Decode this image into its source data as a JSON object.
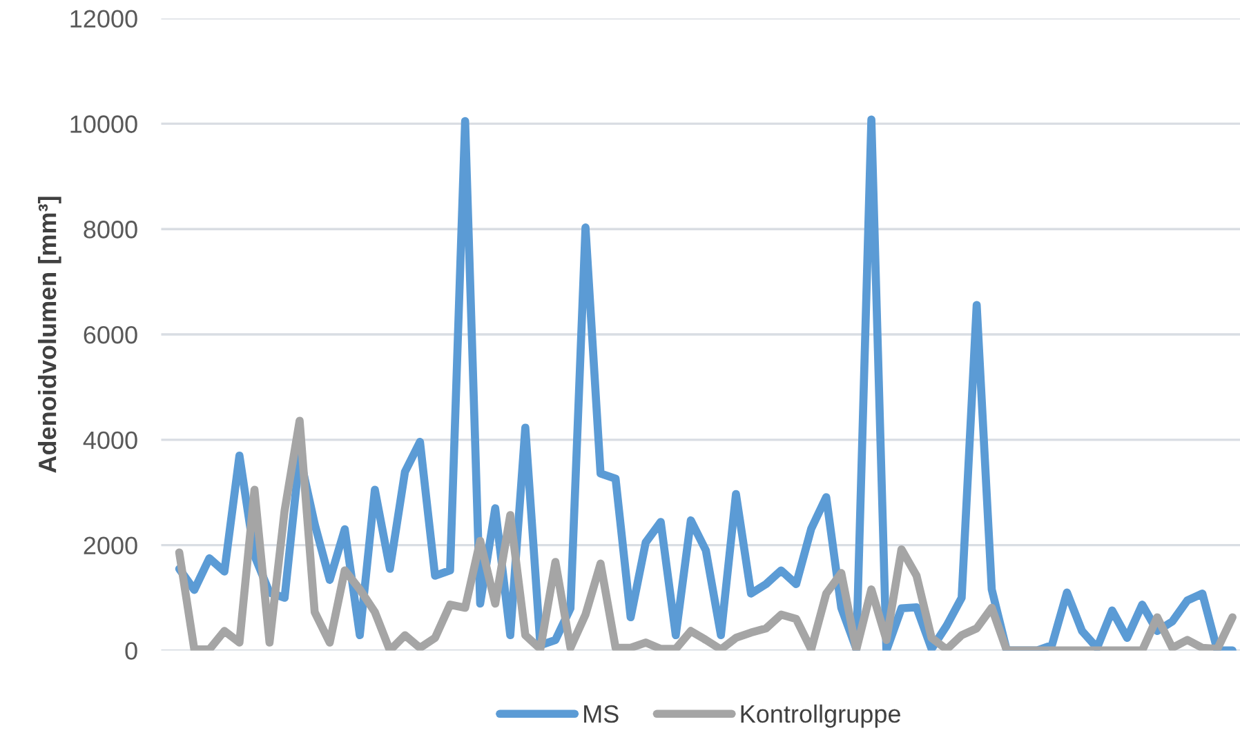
{
  "chart_data": {
    "type": "line",
    "ylabel": "Adenoidvolumen [mm³]",
    "categories": [
      null,
      null,
      null,
      null,
      null,
      null,
      null,
      null,
      null,
      null,
      null,
      null,
      null,
      null,
      null,
      null,
      null,
      null,
      null,
      null,
      null,
      null,
      null,
      null,
      null,
      null,
      null,
      null,
      null,
      null,
      null,
      null,
      null,
      null,
      null,
      null,
      null,
      null,
      null,
      null,
      null,
      null,
      null,
      null,
      null,
      null,
      null,
      null,
      null,
      null,
      null,
      null,
      null,
      null,
      null,
      null,
      null,
      null,
      null,
      null,
      null,
      null,
      null,
      null,
      null,
      null,
      null,
      null,
      null,
      null,
      null
    ],
    "series": [
      {
        "name": "MS",
        "color": "#5b9bd5",
        "values": [
          1550,
          1150,
          1750,
          1500,
          3700,
          1800,
          1100,
          1000,
          3700,
          2400,
          1340,
          2300,
          290,
          3050,
          1550,
          3390,
          3960,
          1420,
          1520,
          10050,
          890,
          2700,
          290,
          4230,
          100,
          200,
          800,
          8030,
          3360,
          3260,
          630,
          2050,
          2440,
          290,
          2470,
          1900,
          290,
          2970,
          1080,
          1260,
          1520,
          1260,
          2310,
          2910,
          810,
          30,
          10080,
          0,
          800,
          820,
          30,
          470,
          1000,
          6560,
          1160,
          0,
          0,
          0,
          100,
          1100,
          370,
          50,
          760,
          240,
          870,
          370,
          550,
          950,
          1080,
          0,
          0
        ]
      },
      {
        "name": "Kontrollgruppe",
        "color": "#a5a5a5",
        "values": [
          1860,
          20,
          20,
          370,
          150,
          3050,
          150,
          2650,
          4360,
          730,
          150,
          1520,
          1160,
          730,
          0,
          290,
          50,
          240,
          870,
          810,
          2080,
          890,
          2570,
          290,
          30,
          1680,
          50,
          680,
          1650,
          50,
          50,
          150,
          30,
          30,
          370,
          200,
          20,
          240,
          340,
          420,
          680,
          600,
          20,
          1080,
          1470,
          20,
          1160,
          200,
          1920,
          1420,
          240,
          20,
          290,
          420,
          810,
          0,
          0,
          0,
          0,
          0,
          0,
          0,
          0,
          0,
          0,
          630,
          50,
          200,
          50,
          30,
          630
        ]
      }
    ],
    "ylim": [
      0,
      12000
    ],
    "yticks": [
      0,
      2000,
      4000,
      6000,
      8000,
      10000,
      12000
    ],
    "grid": "y",
    "legend": "bottom",
    "line_style": "solid",
    "marker": "none"
  }
}
